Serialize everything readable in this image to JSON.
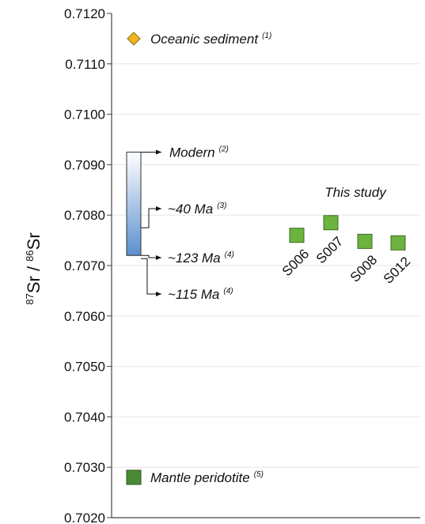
{
  "chart_data": {
    "type": "scatter",
    "ylim": [
      0.702,
      0.712
    ],
    "ytick_labels": [
      "0.7120",
      "0.7110",
      "0.7100",
      "0.7090",
      "0.7080",
      "0.7070",
      "0.7060",
      "0.7050",
      "0.7040",
      "0.7030",
      "0.7020"
    ],
    "ylabel": {
      "sup1": "87",
      "main1": "Sr / ",
      "sup2": "86",
      "main2": "Sr"
    },
    "grid": true,
    "colors": {
      "oceanic": "#f2b321",
      "mantle": "#4a8a37",
      "study": "#6db33f",
      "bar_top": "#ffffff",
      "bar_bottom": "#5b8fce"
    },
    "reference_points": [
      {
        "label": "Oceanic sediment",
        "ref": "(1)",
        "y": 0.7115,
        "marker": "diamond"
      },
      {
        "label": "Mantle peridotite",
        "ref": "(5)",
        "y": 0.7028,
        "marker": "square"
      }
    ],
    "seawater_range": {
      "y_top": 0.70925,
      "y_bottom": 0.7072
    },
    "seawater_annotations": [
      {
        "label": "Modern",
        "ref": "(2)",
        "y": 0.70925
      },
      {
        "label": "~40 Ma",
        "ref": "(3)",
        "y": 0.70775
      },
      {
        "label": "~123 Ma",
        "ref": "(4)",
        "y": 0.7072
      },
      {
        "label": "~115 Ma",
        "ref": "(4)",
        "y": 0.7072
      }
    ],
    "study_title": "This study",
    "study_samples": [
      {
        "sample": "S006",
        "y": 0.7076
      },
      {
        "sample": "S007",
        "y": 0.70785
      },
      {
        "sample": "S008",
        "y": 0.70748
      },
      {
        "sample": "S012",
        "y": 0.70745
      }
    ]
  }
}
